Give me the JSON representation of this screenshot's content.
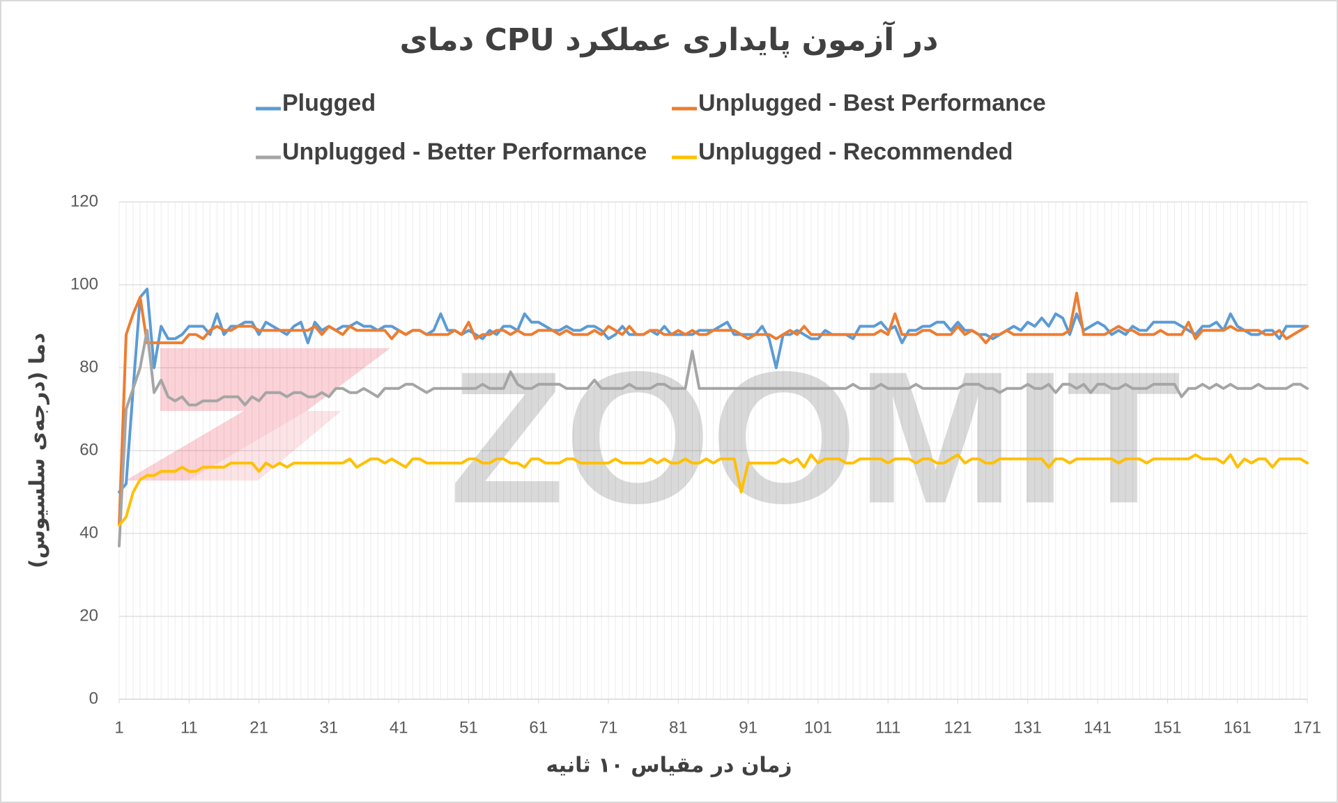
{
  "chart_data": {
    "type": "line",
    "title": "دمای CPU در آزمون پایداری عملکرد",
    "x_label": "زمان در مقیاس ۱۰ ثانیه",
    "y_label": "دما (درجه‌ی سلسیوس)",
    "watermark": "ZOOMIT",
    "legend": "top",
    "grid": true,
    "xlim": [
      1,
      171
    ],
    "xticks": [
      1,
      11,
      21,
      31,
      41,
      51,
      61,
      71,
      81,
      91,
      101,
      111,
      121,
      131,
      141,
      151,
      161,
      171
    ],
    "ylim": [
      0,
      120
    ],
    "yticks": [
      0,
      20,
      40,
      60,
      80,
      100,
      120
    ],
    "x": [
      1,
      2,
      3,
      4,
      5,
      6,
      7,
      8,
      9,
      10,
      11,
      12,
      13,
      14,
      15,
      16,
      17,
      18,
      19,
      20,
      21,
      22,
      23,
      24,
      25,
      26,
      27,
      28,
      29,
      30,
      31,
      32,
      33,
      34,
      35,
      36,
      37,
      38,
      39,
      40,
      41,
      42,
      43,
      44,
      45,
      46,
      47,
      48,
      49,
      50,
      51,
      52,
      53,
      54,
      55,
      56,
      57,
      58,
      59,
      60,
      61,
      62,
      63,
      64,
      65,
      66,
      67,
      68,
      69,
      70,
      71,
      72,
      73,
      74,
      75,
      76,
      77,
      78,
      79,
      80,
      81,
      82,
      83,
      84,
      85,
      86,
      87,
      88,
      89,
      90,
      91,
      92,
      93,
      94,
      95,
      96,
      97,
      98,
      99,
      100,
      101,
      102,
      103,
      104,
      105,
      106,
      107,
      108,
      109,
      110,
      111,
      112,
      113,
      114,
      115,
      116,
      117,
      118,
      119,
      120,
      121,
      122,
      123,
      124,
      125,
      126,
      127,
      128,
      129,
      130,
      131,
      132,
      133,
      134,
      135,
      136,
      137,
      138,
      139,
      140,
      141,
      142,
      143,
      144,
      145,
      146,
      147,
      148,
      149,
      150,
      151,
      152,
      153,
      154,
      155,
      156,
      157,
      158,
      159,
      160,
      161,
      162,
      163,
      164,
      165,
      166,
      167,
      168,
      169,
      170,
      171
    ],
    "series": [
      {
        "name": "Plugged",
        "color": "#5b9bd5",
        "values": [
          50,
          52,
          75,
          97,
          99,
          80,
          90,
          87,
          87,
          88,
          90,
          90,
          90,
          88,
          93,
          88,
          90,
          90,
          91,
          91,
          88,
          91,
          90,
          89,
          88,
          90,
          91,
          86,
          91,
          89,
          90,
          89,
          90,
          90,
          91,
          90,
          90,
          89,
          90,
          90,
          89,
          88,
          89,
          89,
          88,
          89,
          93,
          89,
          89,
          88,
          89,
          88,
          87,
          89,
          88,
          90,
          90,
          89,
          93,
          91,
          91,
          90,
          89,
          89,
          90,
          89,
          89,
          90,
          90,
          89,
          87,
          88,
          90,
          88,
          88,
          88,
          89,
          88,
          90,
          88,
          88,
          88,
          88,
          89,
          89,
          89,
          90,
          91,
          88,
          88,
          88,
          88,
          90,
          87,
          80,
          88,
          88,
          89,
          88,
          87,
          87,
          89,
          88,
          88,
          88,
          87,
          90,
          90,
          90,
          91,
          89,
          90,
          86,
          89,
          89,
          90,
          90,
          91,
          91,
          89,
          91,
          89,
          89,
          88,
          88,
          87,
          88,
          89,
          90,
          89,
          91,
          90,
          92,
          90,
          93,
          92,
          88,
          93,
          89,
          90,
          91,
          90,
          88,
          89,
          88,
          90,
          89,
          89,
          91,
          91,
          91,
          91,
          90,
          89,
          88,
          90,
          90,
          91,
          89,
          93,
          90,
          89,
          88,
          88,
          89,
          89,
          87,
          90,
          90,
          90,
          90
        ]
      },
      {
        "name": "Unplugged - Best Performance",
        "color": "#ed7d31",
        "values": [
          42,
          88,
          93,
          97,
          86,
          86,
          86,
          86,
          86,
          86,
          88,
          88,
          87,
          89,
          90,
          89,
          89,
          90,
          90,
          90,
          89,
          89,
          89,
          89,
          89,
          89,
          89,
          89,
          90,
          88,
          90,
          89,
          88,
          90,
          89,
          89,
          89,
          89,
          89,
          87,
          89,
          88,
          89,
          89,
          88,
          88,
          88,
          88,
          89,
          88,
          91,
          87,
          88,
          88,
          89,
          89,
          88,
          89,
          88,
          88,
          89,
          89,
          89,
          88,
          89,
          88,
          88,
          88,
          89,
          88,
          90,
          89,
          88,
          90,
          88,
          88,
          89,
          89,
          88,
          88,
          89,
          88,
          89,
          88,
          88,
          89,
          89,
          89,
          89,
          88,
          87,
          88,
          88,
          88,
          87,
          88,
          89,
          88,
          90,
          88,
          88,
          88,
          88,
          88,
          88,
          88,
          88,
          88,
          88,
          89,
          88,
          93,
          88,
          88,
          88,
          89,
          89,
          88,
          88,
          88,
          90,
          88,
          89,
          88,
          86,
          88,
          88,
          89,
          88,
          88,
          88,
          88,
          88,
          88,
          88,
          88,
          89,
          98,
          88,
          88,
          88,
          88,
          89,
          90,
          89,
          89,
          88,
          88,
          88,
          89,
          88,
          88,
          88,
          91,
          87,
          89,
          89,
          89,
          89,
          90,
          89,
          89,
          89,
          89,
          88,
          88,
          89,
          87,
          88,
          89,
          90
        ]
      },
      {
        "name": "Unplugged - Better Performance",
        "color": "#a5a5a5",
        "values": [
          37,
          70,
          75,
          80,
          89,
          74,
          77,
          73,
          72,
          73,
          71,
          71,
          72,
          72,
          72,
          73,
          73,
          73,
          71,
          73,
          72,
          74,
          74,
          74,
          73,
          74,
          74,
          73,
          73,
          74,
          73,
          75,
          75,
          74,
          74,
          75,
          74,
          73,
          75,
          75,
          75,
          76,
          76,
          75,
          74,
          75,
          75,
          75,
          75,
          75,
          75,
          75,
          76,
          75,
          75,
          75,
          79,
          76,
          75,
          75,
          76,
          76,
          76,
          76,
          75,
          75,
          75,
          75,
          77,
          75,
          75,
          75,
          75,
          76,
          75,
          75,
          75,
          76,
          76,
          75,
          75,
          75,
          84,
          75,
          75,
          75,
          75,
          75,
          75,
          75,
          75,
          75,
          75,
          75,
          75,
          75,
          75,
          75,
          75,
          75,
          75,
          75,
          75,
          75,
          75,
          76,
          75,
          75,
          75,
          76,
          75,
          75,
          75,
          75,
          76,
          75,
          75,
          75,
          75,
          75,
          75,
          76,
          76,
          76,
          75,
          75,
          74,
          75,
          75,
          75,
          76,
          75,
          75,
          76,
          74,
          76,
          76,
          75,
          76,
          74,
          76,
          76,
          75,
          75,
          76,
          75,
          75,
          75,
          76,
          76,
          76,
          76,
          73,
          75,
          75,
          76,
          75,
          76,
          75,
          76,
          75,
          75,
          75,
          76,
          75,
          75,
          75,
          75,
          76,
          76,
          75
        ]
      },
      {
        "name": "Unplugged - Recommended",
        "color": "#ffc000",
        "values": [
          42,
          44,
          50,
          53,
          54,
          54,
          55,
          55,
          55,
          56,
          55,
          55,
          56,
          56,
          56,
          56,
          57,
          57,
          57,
          57,
          55,
          57,
          56,
          57,
          56,
          57,
          57,
          57,
          57,
          57,
          57,
          57,
          57,
          58,
          56,
          57,
          58,
          58,
          57,
          58,
          57,
          56,
          58,
          58,
          57,
          57,
          57,
          57,
          57,
          57,
          58,
          58,
          57,
          57,
          58,
          58,
          57,
          57,
          56,
          58,
          58,
          57,
          57,
          57,
          58,
          58,
          57,
          57,
          57,
          57,
          57,
          58,
          57,
          57,
          57,
          57,
          58,
          57,
          58,
          57,
          57,
          58,
          57,
          57,
          58,
          57,
          58,
          58,
          58,
          50,
          57,
          57,
          57,
          57,
          57,
          58,
          57,
          58,
          56,
          59,
          57,
          58,
          58,
          58,
          57,
          57,
          58,
          58,
          58,
          58,
          57,
          58,
          58,
          58,
          57,
          58,
          58,
          57,
          57,
          58,
          59,
          57,
          58,
          58,
          57,
          57,
          58,
          58,
          58,
          58,
          58,
          58,
          58,
          56,
          58,
          58,
          57,
          58,
          58,
          58,
          58,
          58,
          58,
          57,
          58,
          58,
          58,
          57,
          58,
          58,
          58,
          58,
          58,
          58,
          59,
          58,
          58,
          58,
          57,
          59,
          56,
          58,
          57,
          58,
          58,
          56,
          58,
          58,
          58,
          58,
          57
        ]
      }
    ]
  }
}
